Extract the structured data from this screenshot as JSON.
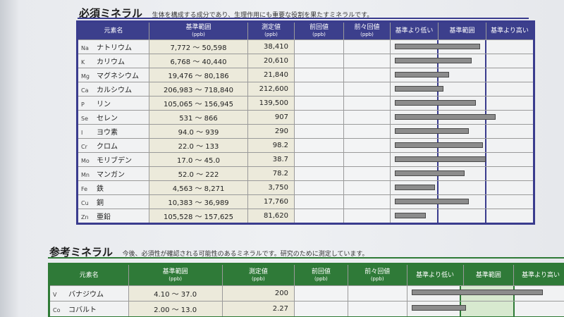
{
  "essential": {
    "title": "必須ミネラル",
    "description": "生体を構成する成分であり、生理作用にも重要な役割を果たすミネラルです。",
    "headers": {
      "element": "元素名",
      "range": "基準範囲",
      "range_unit": "(ppb)",
      "measured": "測定値",
      "measured_unit": "(ppb)",
      "previous": "前回値",
      "previous_unit": "(ppb)",
      "prev2": "前々回値",
      "prev2_unit": "(ppb)",
      "low": "基準より低い",
      "normal": "基準範囲",
      "high": "基準より高い"
    },
    "rows": [
      {
        "symbol": "Na",
        "name": "ナトリウム",
        "range": "7,772 〜 50,598",
        "measured": "38,410",
        "bar_fraction": 0.6
      },
      {
        "symbol": "K",
        "name": "カリウム",
        "range": "6,768 〜 40,440",
        "measured": "20,610",
        "bar_fraction": 0.54
      },
      {
        "symbol": "Mg",
        "name": "マグネシウム",
        "range": "19,476 〜 80,186",
        "measured": "21,840",
        "bar_fraction": 0.38
      },
      {
        "symbol": "Ca",
        "name": "カルシウム",
        "range": "206,983 〜 718,840",
        "measured": "212,600",
        "bar_fraction": 0.34
      },
      {
        "symbol": "P",
        "name": "リン",
        "range": "105,065 〜 156,945",
        "measured": "139,500",
        "bar_fraction": 0.57
      },
      {
        "symbol": "Se",
        "name": "セレン",
        "range": "531 〜 866",
        "measured": "907",
        "bar_fraction": 0.71
      },
      {
        "symbol": "I",
        "name": "ヨウ素",
        "range": "94.0 〜 939",
        "measured": "290",
        "bar_fraction": 0.52
      },
      {
        "symbol": "Cr",
        "name": "クロム",
        "range": "22.0 〜 133",
        "measured": "98.2",
        "bar_fraction": 0.62
      },
      {
        "symbol": "Mo",
        "name": "モリブデン",
        "range": "17.0 〜 45.0",
        "measured": "38.7",
        "bar_fraction": 0.64
      },
      {
        "symbol": "Mn",
        "name": "マンガン",
        "range": "52.0 〜 222",
        "measured": "78.2",
        "bar_fraction": 0.49
      },
      {
        "symbol": "Fe",
        "name": "鉄",
        "range": "4,563 〜 8,271",
        "measured": "3,750",
        "bar_fraction": 0.28
      },
      {
        "symbol": "Cu",
        "name": "銅",
        "range": "10,383 〜 36,989",
        "measured": "17,760",
        "bar_fraction": 0.52
      },
      {
        "symbol": "Zn",
        "name": "亜鉛",
        "range": "105,528 〜 157,625",
        "measured": "81,620",
        "bar_fraction": 0.22
      }
    ]
  },
  "reference": {
    "title": "参考ミネラル",
    "description": "今後、必須性が確認される可能性のあるミネラルです。研究のために測定しています。",
    "headers": {
      "element": "元素名",
      "range": "基準範囲",
      "range_unit": "(ppb)",
      "measured": "測定値",
      "measured_unit": "(ppb)",
      "previous": "前回値",
      "previous_unit": "(ppb)",
      "prev2": "前々回値",
      "prev2_unit": "(ppb)",
      "low": "基準より低い",
      "normal": "基準範囲",
      "high": "基準より高い"
    },
    "rows": [
      {
        "symbol": "V",
        "name": "バナジウム",
        "range": "4.10 〜 37.0",
        "measured": "200",
        "bar_fraction": 0.82
      },
      {
        "symbol": "Co",
        "name": "コバルト",
        "range": "2.00 〜 13.0",
        "measured": "2.27",
        "bar_fraction": 0.34
      }
    ]
  }
}
